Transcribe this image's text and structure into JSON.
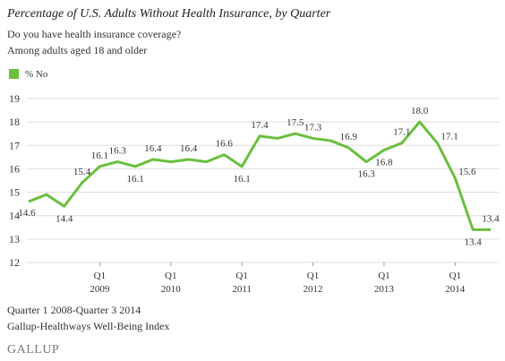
{
  "chart_data": {
    "type": "line",
    "title": "Percentage of U.S. Adults Without Health Insurance, by Quarter",
    "subtitle": "Do you have health insurance coverage?",
    "subtitle2": "Among adults aged 18 and older",
    "categories": [
      null,
      null,
      null,
      null,
      "Q1",
      null,
      null,
      null,
      "Q1",
      null,
      null,
      null,
      "Q1",
      null,
      null,
      null,
      "Q1",
      null,
      null,
      null,
      "Q1",
      null,
      null,
      null,
      "Q1",
      null,
      null
    ],
    "years": [
      null,
      null,
      null,
      null,
      "2009",
      null,
      null,
      null,
      "2010",
      null,
      null,
      null,
      "2011",
      null,
      null,
      null,
      "2012",
      null,
      null,
      null,
      "2013",
      null,
      null,
      null,
      "2014",
      null,
      null
    ],
    "series": [
      {
        "name": "% No",
        "color": "#6abf3f",
        "values": [
          14.6,
          14.9,
          14.4,
          15.4,
          16.1,
          16.3,
          16.1,
          16.4,
          16.3,
          16.4,
          16.3,
          16.6,
          16.1,
          17.4,
          17.3,
          17.5,
          17.3,
          17.2,
          16.9,
          16.3,
          16.8,
          17.1,
          18.0,
          17.1,
          15.6,
          13.4,
          13.4
        ],
        "value_labels": [
          "14.6",
          null,
          "14.4",
          "15.4",
          "16.1",
          "16.3",
          "16.1",
          "16.4",
          null,
          "16.4",
          null,
          "16.6",
          "16.1",
          "17.4",
          null,
          "17.5",
          "17.3",
          null,
          "16.9",
          "16.3",
          "16.8",
          "17.1",
          "18.0",
          "17.1",
          "15.6",
          "13.4",
          "13.4"
        ]
      }
    ],
    "ylim": [
      12,
      19
    ],
    "yticks": [
      12,
      13,
      14,
      15,
      16,
      17,
      18,
      19
    ],
    "grid": true,
    "footer": "Quarter 1 2008-Quarter 3 2014",
    "source": "Gallup-Healthways Well-Being Index",
    "brand": "GALLUP"
  }
}
